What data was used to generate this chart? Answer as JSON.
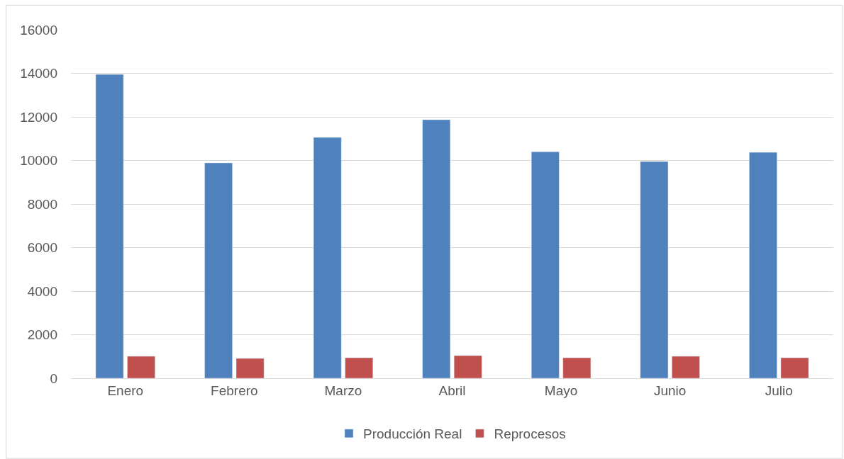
{
  "chart_data": {
    "type": "bar",
    "categories": [
      "Enero",
      "Febrero",
      "Marzo",
      "Abril",
      "Mayo",
      "Junio",
      "Julio"
    ],
    "series": [
      {
        "name": "Producción Real",
        "color": "#4f81bd",
        "values": [
          13950,
          9890,
          11060,
          11870,
          10400,
          9950,
          10370
        ]
      },
      {
        "name": "Reprocesos",
        "color": "#c0504d",
        "values": [
          1010,
          910,
          940,
          1040,
          940,
          1010,
          940
        ]
      }
    ],
    "ylim": [
      0,
      16000
    ],
    "yticks": [
      0,
      2000,
      4000,
      6000,
      8000,
      10000,
      12000,
      14000,
      16000
    ],
    "grid": "y",
    "legend": "bottom"
  }
}
